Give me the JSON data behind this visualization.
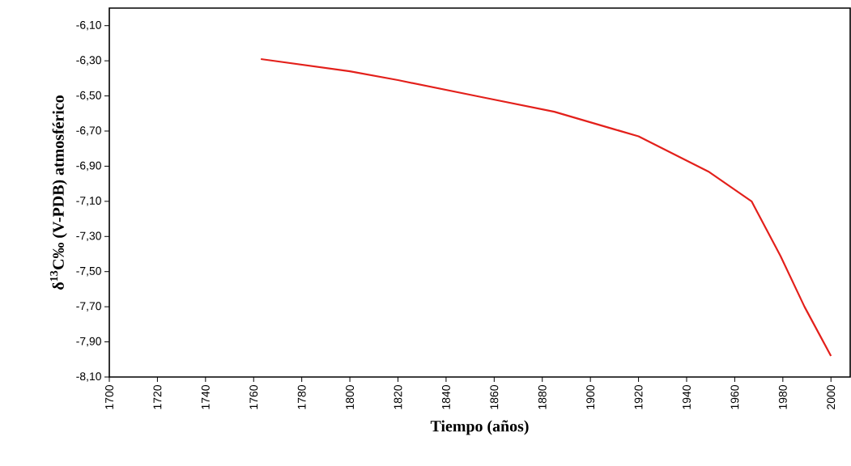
{
  "chart_data": {
    "type": "line",
    "xlabel": "Tiempo (años)",
    "ylabel": "δ$^{13}$C‰ (V-PDB) atmosférico",
    "x": [
      1763,
      1800,
      1820,
      1856,
      1885,
      1910,
      1920,
      1949,
      1967,
      1979,
      1989,
      2000
    ],
    "series": [
      {
        "color": "#e3201b",
        "values": [
          -6.29,
          -6.36,
          -6.41,
          -6.51,
          -6.59,
          -6.69,
          -6.73,
          -6.93,
          -7.1,
          -7.41,
          -7.7,
          -7.98
        ]
      }
    ],
    "xlim": [
      1700,
      2008
    ],
    "ylim": [
      -8.1,
      -6.0
    ],
    "xticks": [
      1700,
      1720,
      1740,
      1760,
      1780,
      1800,
      1820,
      1840,
      1860,
      1880,
      1900,
      1920,
      1940,
      1960,
      1980,
      2000
    ],
    "yticks": [
      {
        "value": -8.1,
        "label": "-8,10"
      },
      {
        "value": -7.9,
        "label": "-7,90"
      },
      {
        "value": -7.7,
        "label": "-7,70"
      },
      {
        "value": -7.5,
        "label": "-7,50"
      },
      {
        "value": -7.3,
        "label": "-7,30"
      },
      {
        "value": -7.1,
        "label": "-7,10"
      },
      {
        "value": -6.9,
        "label": "-6,90"
      },
      {
        "value": -6.7,
        "label": "-6,70"
      },
      {
        "value": -6.5,
        "label": "-6,50"
      },
      {
        "value": -6.3,
        "label": "-6,30"
      },
      {
        "value": -6.1,
        "label": "-6,10"
      }
    ],
    "grid": false,
    "marker": "none",
    "line_style": "solid"
  }
}
